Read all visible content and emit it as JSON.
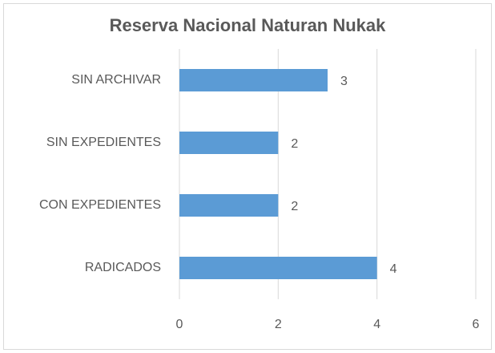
{
  "chart_data": {
    "type": "hbar",
    "title": "Reserva Nacional Naturan Nukak",
    "categories": [
      "SIN ARCHIVAR",
      "SIN EXPEDIENTES",
      "CON EXPEDIENTES",
      "RADICADOS"
    ],
    "values": [
      3,
      2,
      2,
      4
    ],
    "color": "#5b9bd5",
    "xlim": [
      0,
      6
    ],
    "xticks": [
      0,
      2,
      4,
      6
    ],
    "grid": true,
    "data_labels": true
  }
}
